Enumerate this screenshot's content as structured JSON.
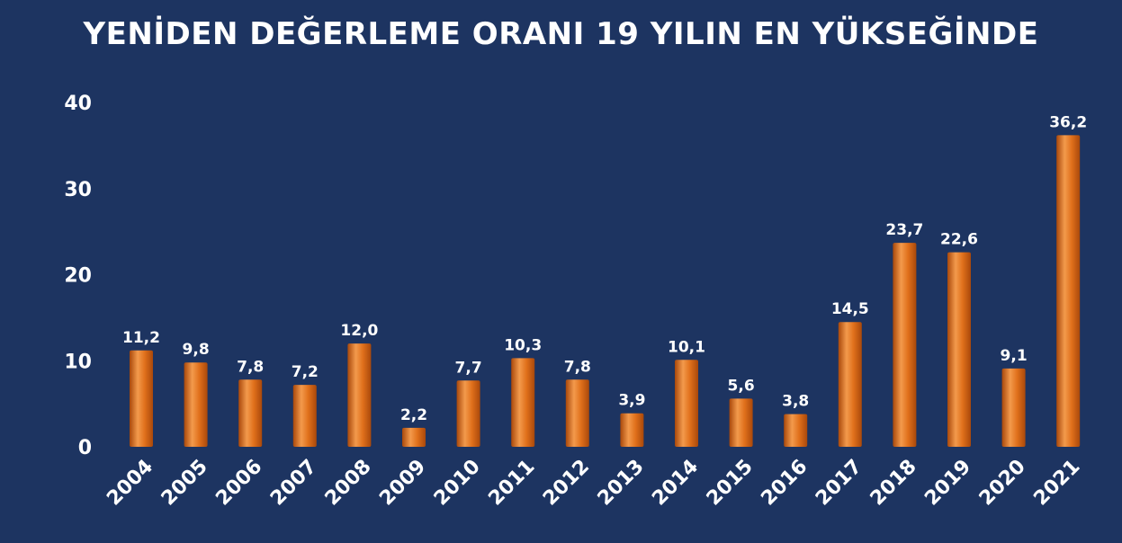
{
  "chart_data": {
    "type": "bar",
    "title": "YENİDEN DEĞERLEME ORANI 19 YILIN EN YÜKSEĞİNDE",
    "xlabel": "",
    "ylabel": "",
    "categories": [
      "2004",
      "2005",
      "2006",
      "2007",
      "2008",
      "2009",
      "2010",
      "2011",
      "2012",
      "2013",
      "2014",
      "2015",
      "2016",
      "2017",
      "2018",
      "2019",
      "2020",
      "2021"
    ],
    "values": [
      11.2,
      9.8,
      7.8,
      7.2,
      12.0,
      2.2,
      7.7,
      10.3,
      7.8,
      3.9,
      10.1,
      5.6,
      3.8,
      14.5,
      23.7,
      22.6,
      9.1,
      36.2
    ],
    "value_labels": [
      "11,2",
      "9,8",
      "7,8",
      "7,2",
      "12,0",
      "2,2",
      "7,7",
      "10,3",
      "7,8",
      "3,9",
      "10,1",
      "5,6",
      "3,8",
      "14,5",
      "23,7",
      "22,6",
      "9,1",
      "36,2"
    ],
    "y_ticks": [
      "0",
      "10",
      "20",
      "30",
      "40"
    ],
    "ylim": [
      0,
      40
    ],
    "grid": false,
    "legend": "none",
    "colors": {
      "background": "#1d3461",
      "bar": "#e0701b",
      "bar_light": "#f39a4c",
      "bar_dark": "#a9480b",
      "text": "#ffffff"
    }
  }
}
